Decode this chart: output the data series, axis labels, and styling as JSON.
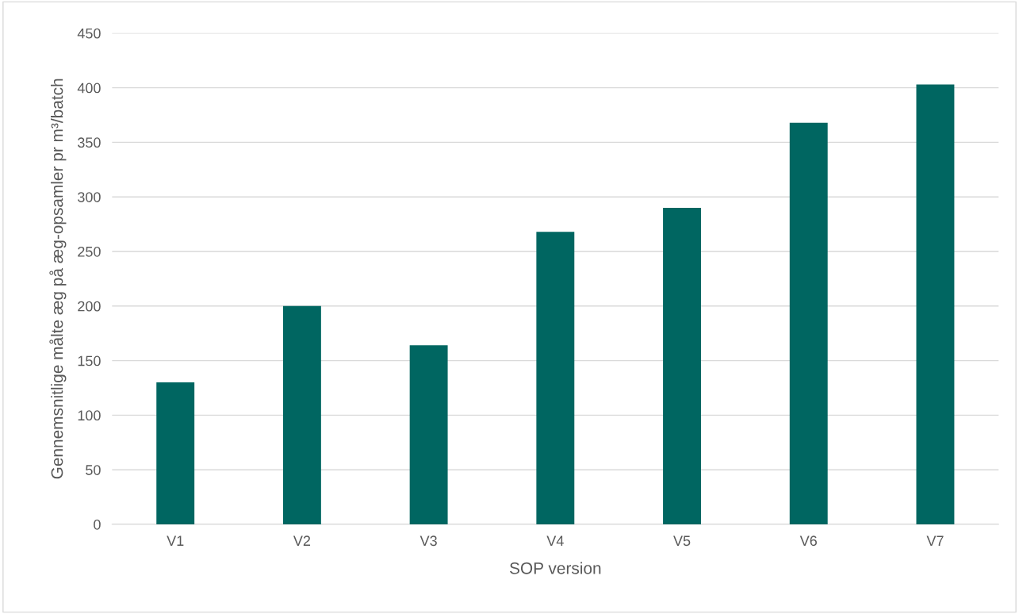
{
  "chart_data": {
    "type": "bar",
    "xlabel": "SOP version",
    "ylabel": "Gennemsnitlige målte æg på æg-opsamler pr m³/batch",
    "categories": [
      "V1",
      "V2",
      "V3",
      "V4",
      "V5",
      "V6",
      "V7"
    ],
    "values": [
      130,
      200,
      164,
      268,
      290,
      368,
      403
    ],
    "color": "#006661",
    "ylim": [
      0,
      450
    ],
    "yticks": [
      0,
      50,
      100,
      150,
      200,
      250,
      300,
      350,
      400,
      450
    ],
    "grid": "y"
  }
}
